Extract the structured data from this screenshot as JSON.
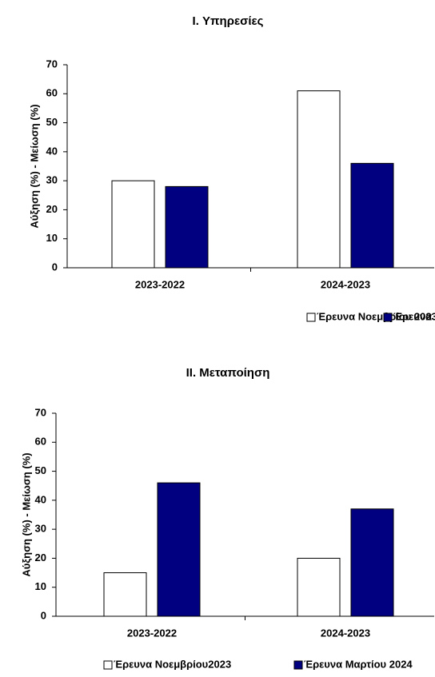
{
  "chart_data": [
    {
      "type": "bar",
      "title": "I. Υπηρεσίες",
      "y_label": "Αύξηση (%) - Μείωση (%)",
      "categories": [
        "2023-2022",
        "2024-2023"
      ],
      "series": [
        {
          "name": "Έρευνα Νοεμβρίου 2023",
          "color": "#ffffff",
          "values": [
            30,
            61
          ]
        },
        {
          "name": "Έρευνα Μαρτίου 2024",
          "color": "#000080",
          "values": [
            28,
            36
          ]
        }
      ],
      "ylim": [
        0,
        70
      ],
      "yticks": [
        0,
        10,
        20,
        30,
        40,
        50,
        60,
        70
      ],
      "grid": false
    },
    {
      "type": "bar",
      "title": "II. Μεταποίηση",
      "y_label": "Αύξηση (%) - Μείωση (%)",
      "categories": [
        "2023-2022",
        "2024-2023"
      ],
      "series": [
        {
          "name": "Έρευνα Νοεμβρίου2023",
          "color": "#ffffff",
          "values": [
            15,
            20
          ]
        },
        {
          "name": "Έρευνα Μαρτίου 2024",
          "color": "#000080",
          "values": [
            46,
            37
          ]
        }
      ],
      "ylim": [
        0,
        70
      ],
      "yticks": [
        0,
        10,
        20,
        30,
        40,
        50,
        60,
        70
      ],
      "grid": false
    }
  ]
}
